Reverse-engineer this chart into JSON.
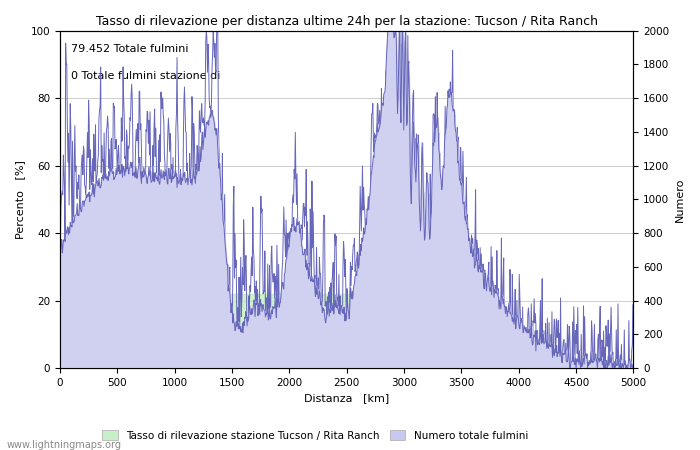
{
  "title": "Tasso di rilevazione per distanza ultime 24h per la stazione: Tucson / Rita Ranch",
  "xlabel": "Distanza   [km]",
  "ylabel_left": "Percento   [%]",
  "ylabel_right": "Numero",
  "annotation_line1": "79.452 Totale fulmini",
  "annotation_line2": "0 Totale fulmini stazione di",
  "legend_label1": "Tasso di rilevazione stazione Tucson / Rita Ranch",
  "legend_label2": "Numero totale fulmini",
  "legend_color1": "#c8f0c8",
  "legend_color2": "#c8c8f0",
  "watermark": "www.lightningmaps.org",
  "xlim": [
    0,
    5000
  ],
  "ylim_left": [
    0,
    100
  ],
  "ylim_right": [
    0,
    2000
  ],
  "xticks": [
    0,
    500,
    1000,
    1500,
    2000,
    2500,
    3000,
    3500,
    4000,
    4500,
    5000
  ],
  "yticks_left": [
    0,
    20,
    40,
    60,
    80,
    100
  ],
  "yticks_right": [
    0,
    200,
    400,
    600,
    800,
    1000,
    1200,
    1400,
    1600,
    1800,
    2000
  ],
  "background_color": "#ffffff",
  "line_color": "#6666bb",
  "fill_blue": "#d0d0f0",
  "fill_green": "#c0f0c0",
  "grid_color": "#bbbbbb"
}
